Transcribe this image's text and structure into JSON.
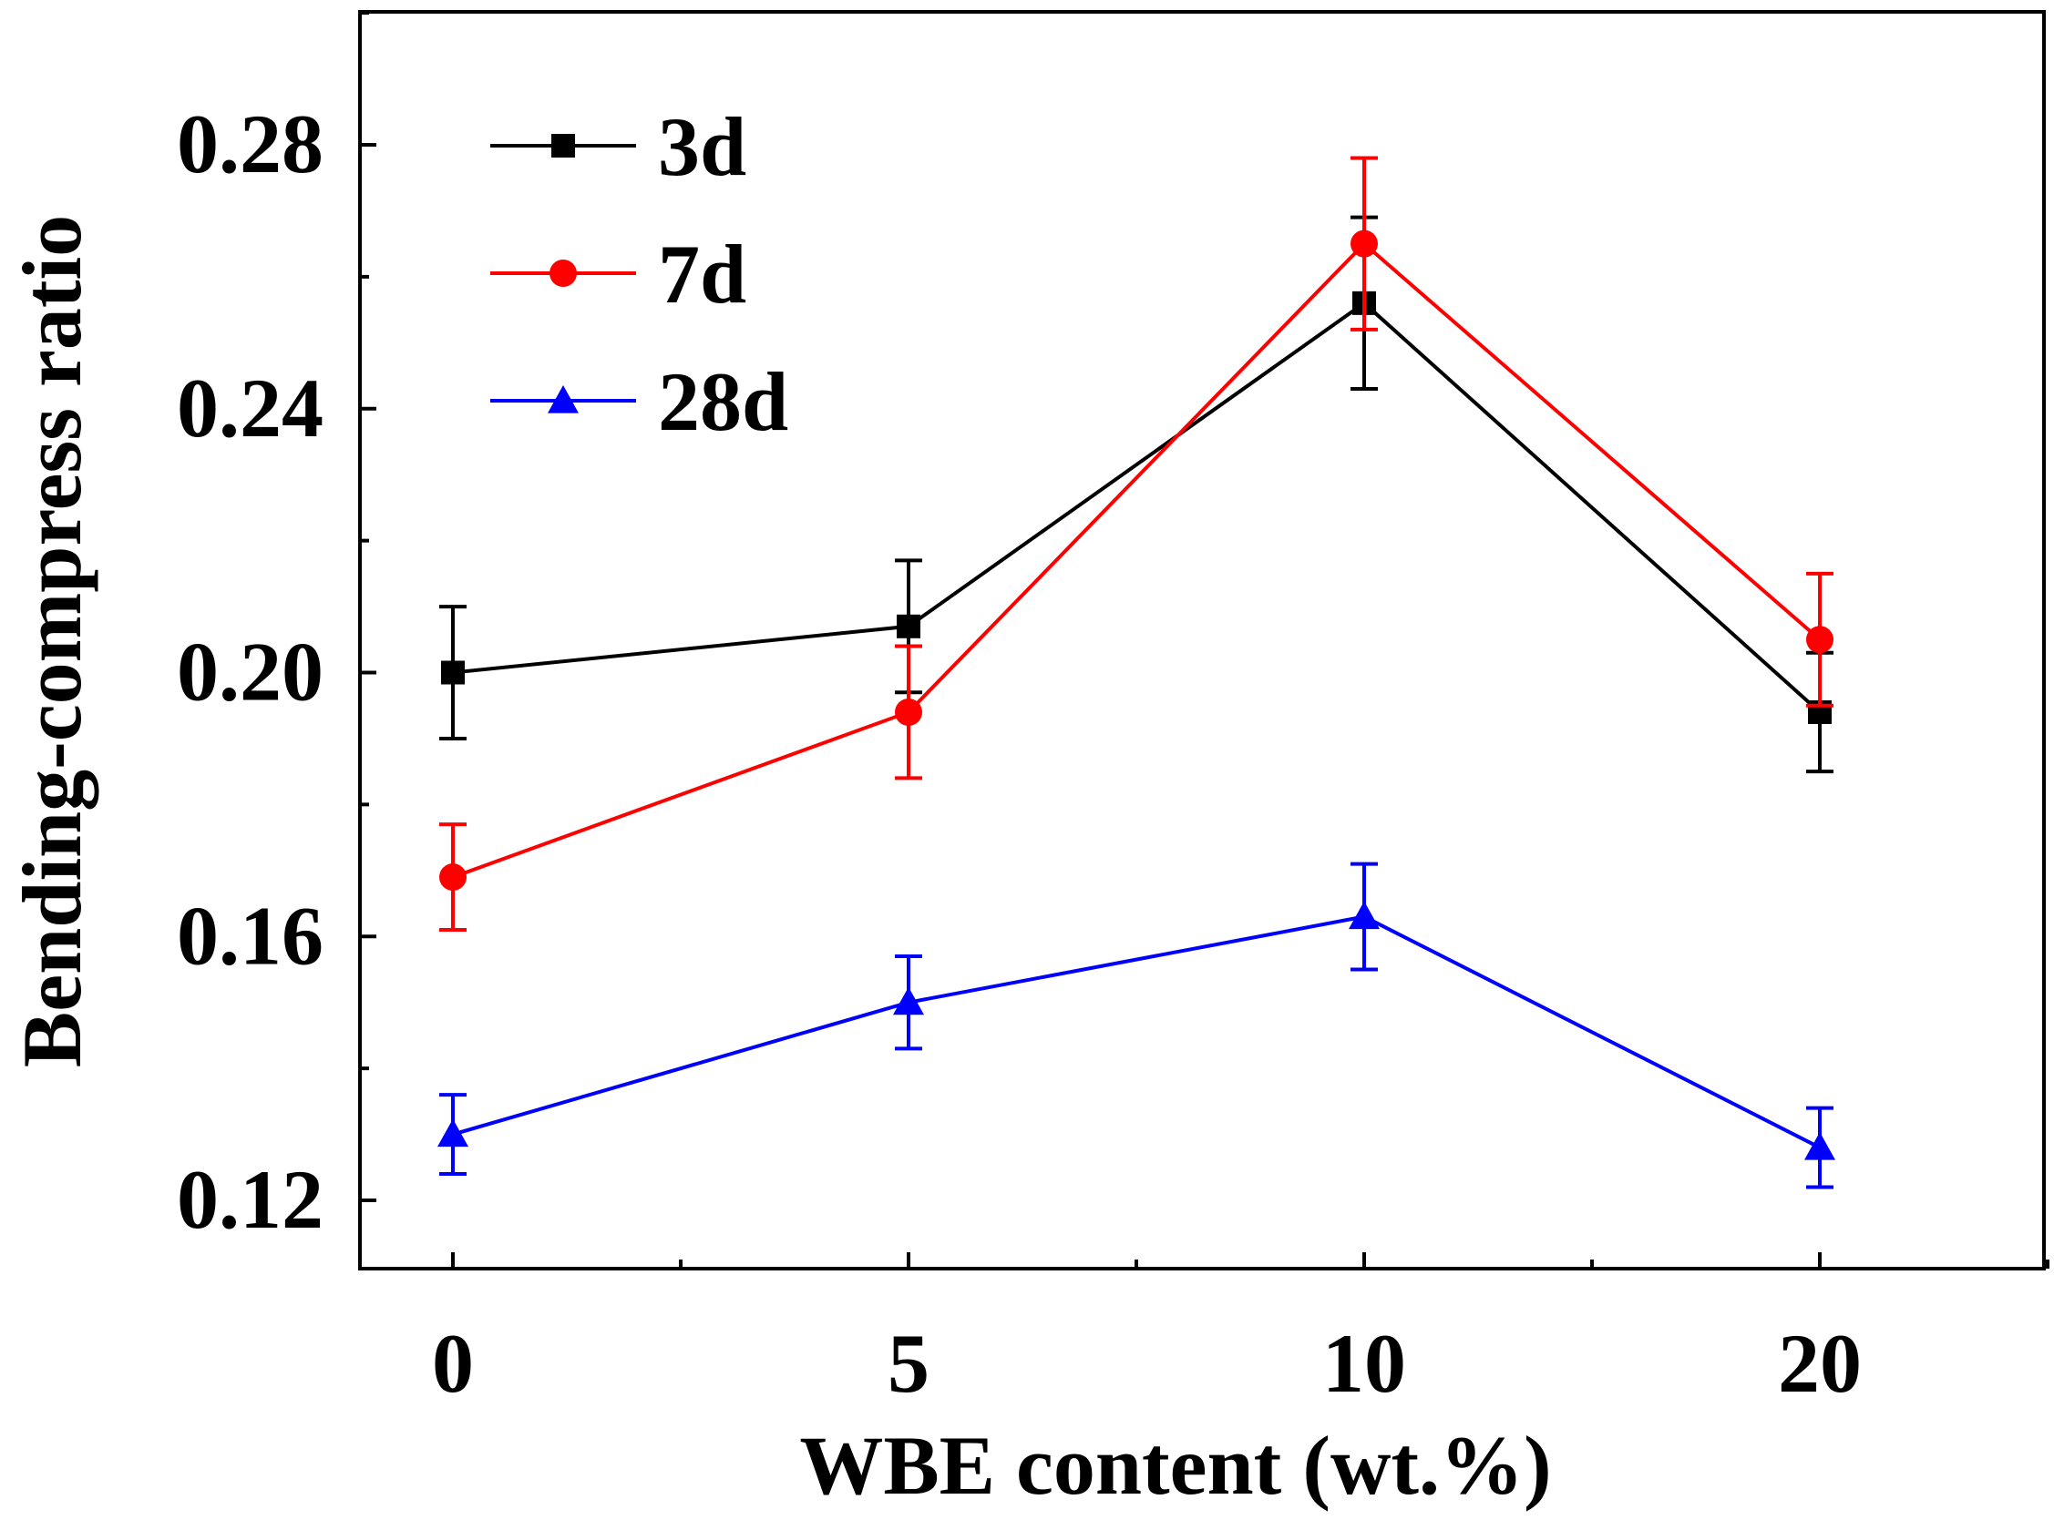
{
  "chart_data": {
    "type": "line",
    "title": "",
    "xlabel": "WBE content (wt.%)",
    "ylabel": "Bending-compress ratio",
    "categories": [
      "0",
      "5",
      "10",
      "20"
    ],
    "ylim": [
      0.11,
      0.3
    ],
    "yticks": [
      0.12,
      0.16,
      0.2,
      0.24,
      0.28
    ],
    "ytick_labels": [
      "0.12",
      "0.16",
      "0.20",
      "0.24",
      "0.28"
    ],
    "grid": false,
    "legend_position": "top-left",
    "series": [
      {
        "name": "3d",
        "color": "#000000",
        "marker": "square",
        "values": [
          0.2,
          0.207,
          0.256,
          0.194
        ],
        "errors": [
          0.01,
          0.01,
          0.013,
          0.009
        ]
      },
      {
        "name": "7d",
        "color": "#ff0000",
        "marker": "circle",
        "values": [
          0.169,
          0.194,
          0.265,
          0.205
        ],
        "errors": [
          0.008,
          0.01,
          0.013,
          0.01
        ]
      },
      {
        "name": "28d",
        "color": "#0000ff",
        "marker": "triangle",
        "values": [
          0.13,
          0.15,
          0.163,
          0.128
        ],
        "errors": [
          0.006,
          0.007,
          0.008,
          0.006
        ]
      }
    ]
  }
}
